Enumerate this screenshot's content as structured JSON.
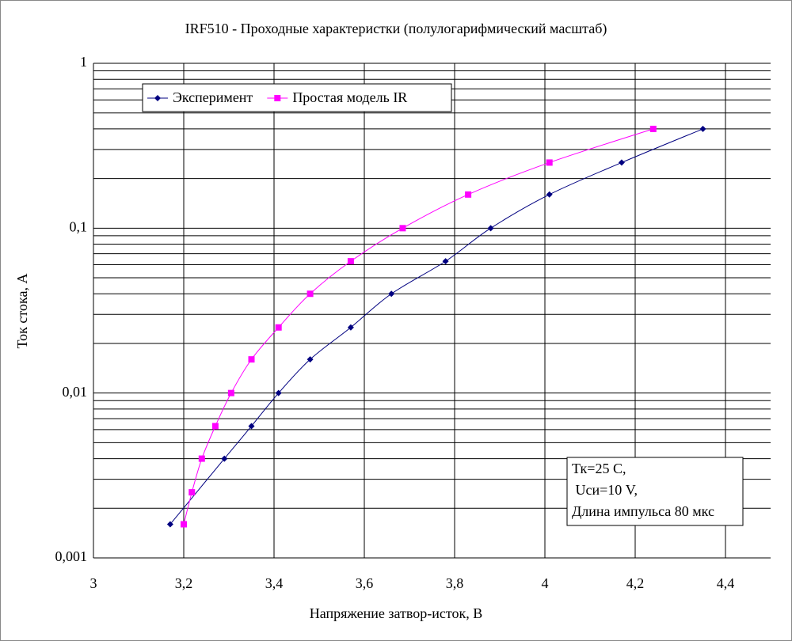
{
  "chart_data": {
    "type": "scatter",
    "title": "IRF510 - Проходные характеристки (полулогарифмический масштаб)",
    "x_label": "Напряжение затвор-исток, В",
    "y_label": "Ток стока, А",
    "log_y": true,
    "grid": true,
    "minor_grid": true,
    "smooth": true,
    "legend": "top-left",
    "xlim": [
      3,
      4.5
    ],
    "xticks": [
      3,
      {
        "value": 3.2,
        "label": "3,2"
      },
      {
        "value": 3.4,
        "label": "3,4"
      },
      {
        "value": 3.6,
        "label": "3,6"
      },
      {
        "value": 3.8,
        "label": "3,8"
      },
      4,
      {
        "value": 4.2,
        "label": "4,2"
      },
      {
        "value": 4.4,
        "label": "4,4"
      }
    ],
    "ylim": [
      0.001,
      1
    ],
    "yticks": [
      {
        "value": 0.001,
        "label": "0,001"
      },
      {
        "value": 0.01,
        "label": "0,01"
      },
      {
        "value": 0.1,
        "label": "0,1"
      },
      1
    ],
    "series": [
      {
        "name": "Эксперимент",
        "color": "#000080",
        "marker": "diamond",
        "x": [
          3.17,
          3.29,
          3.35,
          3.41,
          3.48,
          3.57,
          3.66,
          3.78,
          3.88,
          4.01,
          4.17,
          4.35
        ],
        "values": [
          0.0016,
          0.004,
          0.0063,
          0.01,
          0.016,
          0.025,
          0.04,
          0.063,
          0.1,
          0.16,
          0.25,
          0.4
        ]
      },
      {
        "name": "Простая модель IR",
        "color": "#ff00ff",
        "marker": "square",
        "x": [
          3.2,
          3.218,
          3.24,
          3.27,
          3.305,
          3.35,
          3.41,
          3.48,
          3.57,
          3.685,
          3.83,
          4.01,
          4.24
        ],
        "values": [
          0.0016,
          0.0025,
          0.004,
          0.0063,
          0.01,
          0.016,
          0.025,
          0.04,
          0.063,
          0.1,
          0.16,
          0.25,
          0.4
        ]
      }
    ],
    "annotation": [
      "Тк=25 С,",
      " Uси=10 V,",
      "Длина импульса 80 мкс"
    ]
  }
}
